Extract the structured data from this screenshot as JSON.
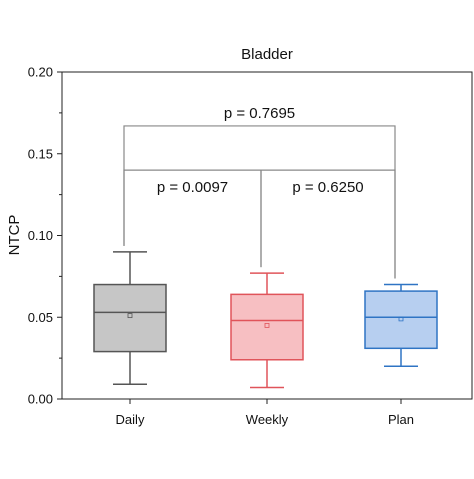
{
  "chart_data": {
    "type": "box",
    "title": "Bladder",
    "xlabel": "",
    "ylabel": "NTCP",
    "ylim": [
      0,
      0.2
    ],
    "yticks": [
      "0.00",
      "0.05",
      "0.10",
      "0.15",
      "0.20"
    ],
    "grid": false,
    "categories": [
      "Daily",
      "Weekly",
      "Plan"
    ],
    "boxes": [
      {
        "category": "Daily",
        "min": 0.009,
        "q1": 0.029,
        "median": 0.053,
        "q3": 0.07,
        "max": 0.09,
        "mean": 0.051,
        "fill": "#c6c6c6",
        "stroke": "#555555"
      },
      {
        "category": "Weekly",
        "min": 0.007,
        "q1": 0.024,
        "median": 0.048,
        "q3": 0.064,
        "max": 0.077,
        "mean": 0.045,
        "fill": "#f7bfc2",
        "stroke": "#e0545a"
      },
      {
        "category": "Plan",
        "min": 0.02,
        "q1": 0.031,
        "median": 0.05,
        "q3": 0.066,
        "max": 0.07,
        "mean": 0.049,
        "fill": "#b7cff0",
        "stroke": "#2f74c4"
      }
    ],
    "comparisons": [
      {
        "from": "Daily",
        "to": "Weekly",
        "label": "p = 0.0097",
        "y": 0.14
      },
      {
        "from": "Weekly",
        "to": "Plan",
        "label": "p = 0.6250",
        "y": 0.14
      },
      {
        "from": "Daily",
        "to": "Plan",
        "label": "p = 0.7695",
        "y": 0.167
      }
    ],
    "bracket_color": "#888888"
  }
}
